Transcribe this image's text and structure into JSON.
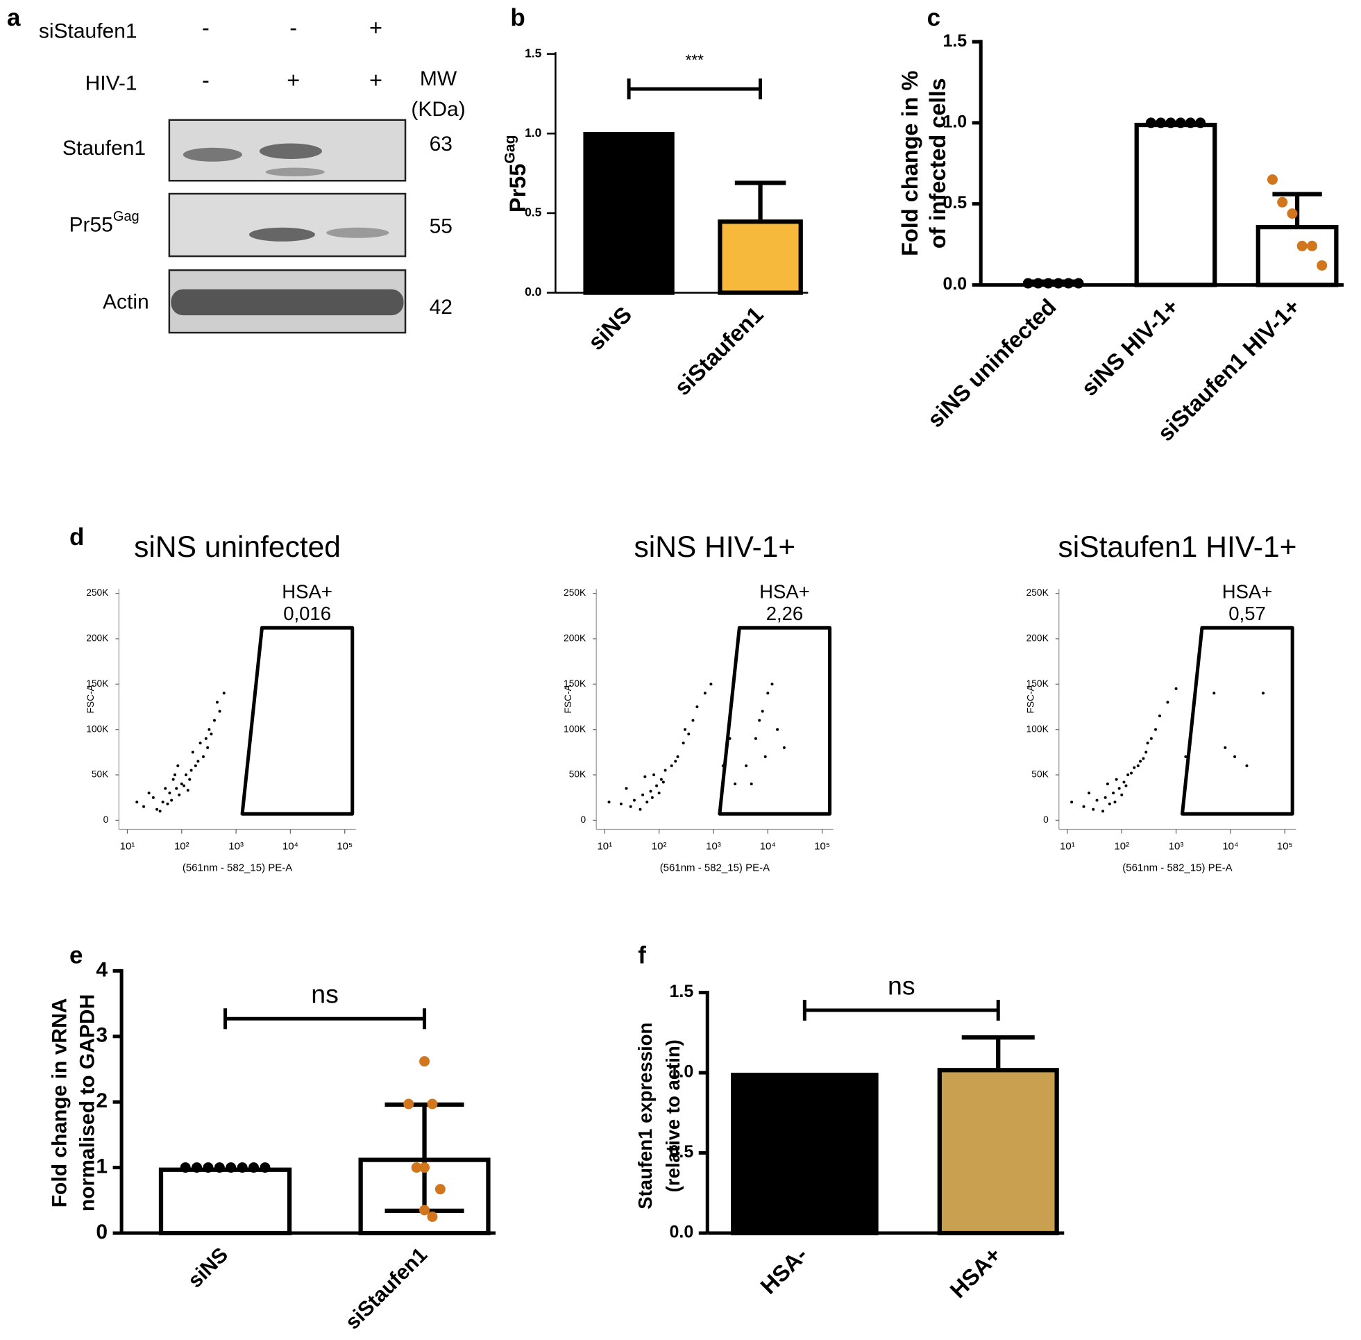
{
  "chart_data": [
    {
      "type": "blot",
      "panel": "a",
      "conditions": [
        {
          "name": "siStaufen1",
          "lanes": [
            "-",
            "-",
            "+"
          ]
        },
        {
          "name": "HIV-1",
          "lanes": [
            "-",
            "+",
            "+"
          ]
        }
      ],
      "mw_header": [
        "MW",
        "(KDa)"
      ],
      "rows": [
        {
          "name": "Staufen1",
          "mw": 63
        },
        {
          "name": "Pr55",
          "superscript": "Gag",
          "mw": 55
        },
        {
          "name": "Actin",
          "mw": 42
        }
      ]
    },
    {
      "type": "bar",
      "panel": "b",
      "ylabel": "Pr55",
      "ylabel_superscript": "Gag",
      "categories": [
        "siNS",
        "siStaufen1"
      ],
      "values": [
        1.01,
        0.46
      ],
      "colors": [
        "#000000",
        "#f6b93b"
      ],
      "errors": [
        null,
        0.23
      ],
      "error_direction": "up",
      "significance": {
        "label": "***",
        "y": 1.28
      },
      "ylim": [
        0,
        1.5
      ],
      "yticks": [
        {
          "value": 0,
          "label": "0.0"
        },
        0.5,
        {
          "value": 1,
          "label": "1.0"
        },
        1.5
      ]
    },
    {
      "type": "bar",
      "panel": "c",
      "ylabel": [
        "Fold change in %",
        "of infected cells"
      ],
      "categories": [
        "siNS uninfected",
        "siNS HIV-1+",
        "siStaufen1 HIV-1+"
      ],
      "values": [
        0.01,
        1.0,
        0.37
      ],
      "colors": [
        "#ffffff",
        "#ffffff",
        "#ffffff"
      ],
      "errors": [
        0.01,
        null,
        0.19
      ],
      "error_direction": "up",
      "points": [
        [
          0.01,
          0.01,
          0.01,
          0.01,
          0.01,
          0.01
        ],
        [
          1,
          1,
          1,
          1,
          1,
          1
        ],
        [
          0.65,
          0.51,
          0.44,
          0.24,
          0.24,
          0.12
        ]
      ],
      "point_colors": [
        "#000000",
        "#000000",
        "#d2761e"
      ],
      "ylim": [
        0,
        1.5
      ],
      "yticks": [
        {
          "value": 0,
          "label": "0.0"
        },
        0.5,
        {
          "value": 1,
          "label": "1.0"
        },
        1.5
      ]
    },
    {
      "type": "scatter",
      "panel": "d",
      "title": "siNS uninfected",
      "xlabel": "(561nm - 582_15) PE-A",
      "ylabel": "FSC-A",
      "xlog": true,
      "xlim": [
        7,
        160000
      ],
      "xticks": [
        {
          "value": 10,
          "label": "10¹"
        },
        {
          "value": 100,
          "label": "10²"
        },
        {
          "value": 1000,
          "label": "10³"
        },
        {
          "value": 10000,
          "label": "10⁴"
        },
        {
          "value": 100000,
          "label": "10⁵"
        }
      ],
      "ylim": [
        -10000,
        255000
      ],
      "yticks": [
        0,
        {
          "value": 50000,
          "label": "50K"
        },
        {
          "value": 100000,
          "label": "100K"
        },
        {
          "value": 150000,
          "label": "150K"
        },
        {
          "value": 200000,
          "label": "200K"
        },
        {
          "value": 250000,
          "label": "250K"
        }
      ],
      "x": [
        20,
        30,
        45,
        60,
        80,
        100,
        40,
        55,
        70,
        90,
        120,
        150,
        200,
        250,
        300,
        350,
        400,
        500,
        600,
        35,
        25,
        65,
        110,
        180,
        280,
        450,
        130,
        75,
        50,
        160,
        220,
        320,
        15,
        85,
        140
      ],
      "y": [
        15000,
        25000,
        20000,
        30000,
        35000,
        40000,
        10000,
        18000,
        45000,
        28000,
        50000,
        55000,
        65000,
        70000,
        80000,
        95000,
        110000,
        120000,
        140000,
        12000,
        30000,
        22000,
        38000,
        60000,
        90000,
        130000,
        33000,
        50000,
        35000,
        75000,
        85000,
        100000,
        20000,
        60000,
        45000
      ],
      "gate": {
        "label": "HSA+",
        "values": [
          0.016
        ],
        "value_labels": [
          "0,016"
        ],
        "x": [
          3000,
          138000,
          138000,
          1300
        ],
        "y": [
          212000,
          212000,
          7000,
          7000
        ]
      }
    },
    {
      "type": "scatter",
      "title": "siNS HIV-1+",
      "xlabel": "(561nm - 582_15) PE-A",
      "ylabel": "FSC-A",
      "xlog": true,
      "xlim": [
        7,
        160000
      ],
      "xticks": [
        {
          "value": 10,
          "label": "10¹"
        },
        {
          "value": 100,
          "label": "10²"
        },
        {
          "value": 1000,
          "label": "10³"
        },
        {
          "value": 10000,
          "label": "10⁴"
        },
        {
          "value": 100000,
          "label": "10⁵"
        }
      ],
      "ylim": [
        -10000,
        255000
      ],
      "yticks": [
        0,
        {
          "value": 50000,
          "label": "50K"
        },
        {
          "value": 100000,
          "label": "100K"
        },
        {
          "value": 150000,
          "label": "150K"
        },
        {
          "value": 200000,
          "label": "200K"
        },
        {
          "value": 250000,
          "label": "250K"
        }
      ],
      "x": [
        20,
        35,
        50,
        70,
        90,
        110,
        45,
        60,
        80,
        100,
        130,
        170,
        220,
        280,
        350,
        420,
        500,
        700,
        900,
        30,
        25,
        75,
        120,
        200,
        300,
        1500,
        2000,
        2500,
        12,
        55,
        4000,
        6000,
        8000,
        10000,
        15000,
        20000,
        5000,
        12000,
        7000,
        9000
      ],
      "y": [
        18000,
        22000,
        28000,
        32000,
        38000,
        45000,
        12000,
        20000,
        50000,
        30000,
        55000,
        60000,
        70000,
        85000,
        95000,
        110000,
        125000,
        140000,
        150000,
        15000,
        35000,
        25000,
        42000,
        65000,
        100000,
        60000,
        90000,
        40000,
        20000,
        48000,
        60000,
        90000,
        120000,
        140000,
        100000,
        80000,
        40000,
        150000,
        110000,
        70000
      ],
      "gate": {
        "label": "HSA+",
        "values": [
          2.26
        ],
        "value_labels": [
          "2,26"
        ],
        "x": [
          3000,
          138000,
          138000,
          1300
        ],
        "y": [
          212000,
          212000,
          7000,
          7000
        ]
      }
    },
    {
      "type": "scatter",
      "title": "siStaufen1 HIV-1+",
      "xlabel": "(561nm - 582_15) PE-A",
      "ylabel": "FSC-A",
      "xlog": true,
      "xlim": [
        7,
        160000
      ],
      "xticks": [
        {
          "value": 10,
          "label": "10¹"
        },
        {
          "value": 100,
          "label": "10²"
        },
        {
          "value": 1000,
          "label": "10³"
        },
        {
          "value": 10000,
          "label": "10⁴"
        },
        {
          "value": 100000,
          "label": "10⁵"
        }
      ],
      "ylim": [
        -10000,
        255000
      ],
      "yticks": [
        0,
        {
          "value": 50000,
          "label": "50K"
        },
        {
          "value": 100000,
          "label": "100K"
        },
        {
          "value": 150000,
          "label": "150K"
        },
        {
          "value": 200000,
          "label": "200K"
        },
        {
          "value": 250000,
          "label": "250K"
        }
      ],
      "x": [
        20,
        35,
        50,
        70,
        90,
        110,
        45,
        60,
        80,
        100,
        130,
        170,
        220,
        280,
        350,
        420,
        500,
        700,
        1000,
        30,
        25,
        75,
        120,
        200,
        300,
        1500,
        12,
        55,
        150,
        250,
        5000,
        8000,
        12000,
        20000,
        40000
      ],
      "y": [
        15000,
        22000,
        25000,
        30000,
        35000,
        42000,
        10000,
        18000,
        45000,
        28000,
        50000,
        58000,
        65000,
        75000,
        90000,
        100000,
        115000,
        130000,
        145000,
        12000,
        30000,
        20000,
        38000,
        60000,
        85000,
        70000,
        20000,
        40000,
        52000,
        68000,
        140000,
        80000,
        70000,
        60000,
        140000
      ],
      "gate": {
        "label": "HSA+",
        "values": [
          0.57
        ],
        "value_labels": [
          "0,57"
        ],
        "x": [
          3000,
          138000,
          138000,
          1300
        ],
        "y": [
          212000,
          212000,
          7000,
          7000
        ]
      }
    },
    {
      "type": "bar",
      "panel": "e",
      "ylabel": [
        "Fold change in vRNA",
        "normalised to  GAPDH"
      ],
      "categories": [
        "siNS",
        "siStaufen1"
      ],
      "values": [
        1.0,
        1.15
      ],
      "colors": [
        "#ffffff",
        "#ffffff"
      ],
      "errors": [
        null,
        0.81
      ],
      "error_direction": "both",
      "points": [
        [
          1,
          1,
          1,
          1,
          1,
          1,
          1,
          1
        ],
        [
          2.62,
          1.97,
          1.97,
          1.0,
          1.0,
          0.67,
          0.35,
          0.25
        ]
      ],
      "point_colors": [
        "#000000",
        "#d2761e"
      ],
      "significance": {
        "label": "ns",
        "y": 3.27
      },
      "ylim": [
        0,
        4
      ],
      "yticks": [
        0,
        1,
        2,
        3,
        4
      ]
    },
    {
      "type": "bar",
      "panel": "f",
      "ylabel": [
        "Staufen1 expression",
        "(relative to actin)"
      ],
      "categories": [
        "HSA-",
        "HSA+"
      ],
      "values": [
        1.0,
        1.03
      ],
      "colors": [
        "#000000",
        "#c9a050"
      ],
      "errors": [
        null,
        0.19
      ],
      "error_direction": "up",
      "significance": {
        "label": "ns",
        "y": 1.39
      },
      "ylim": [
        0,
        1.5
      ],
      "yticks": [
        {
          "value": 0,
          "label": "0.0"
        },
        0.5,
        {
          "value": 1,
          "label": "1.0"
        },
        1.5
      ]
    }
  ]
}
